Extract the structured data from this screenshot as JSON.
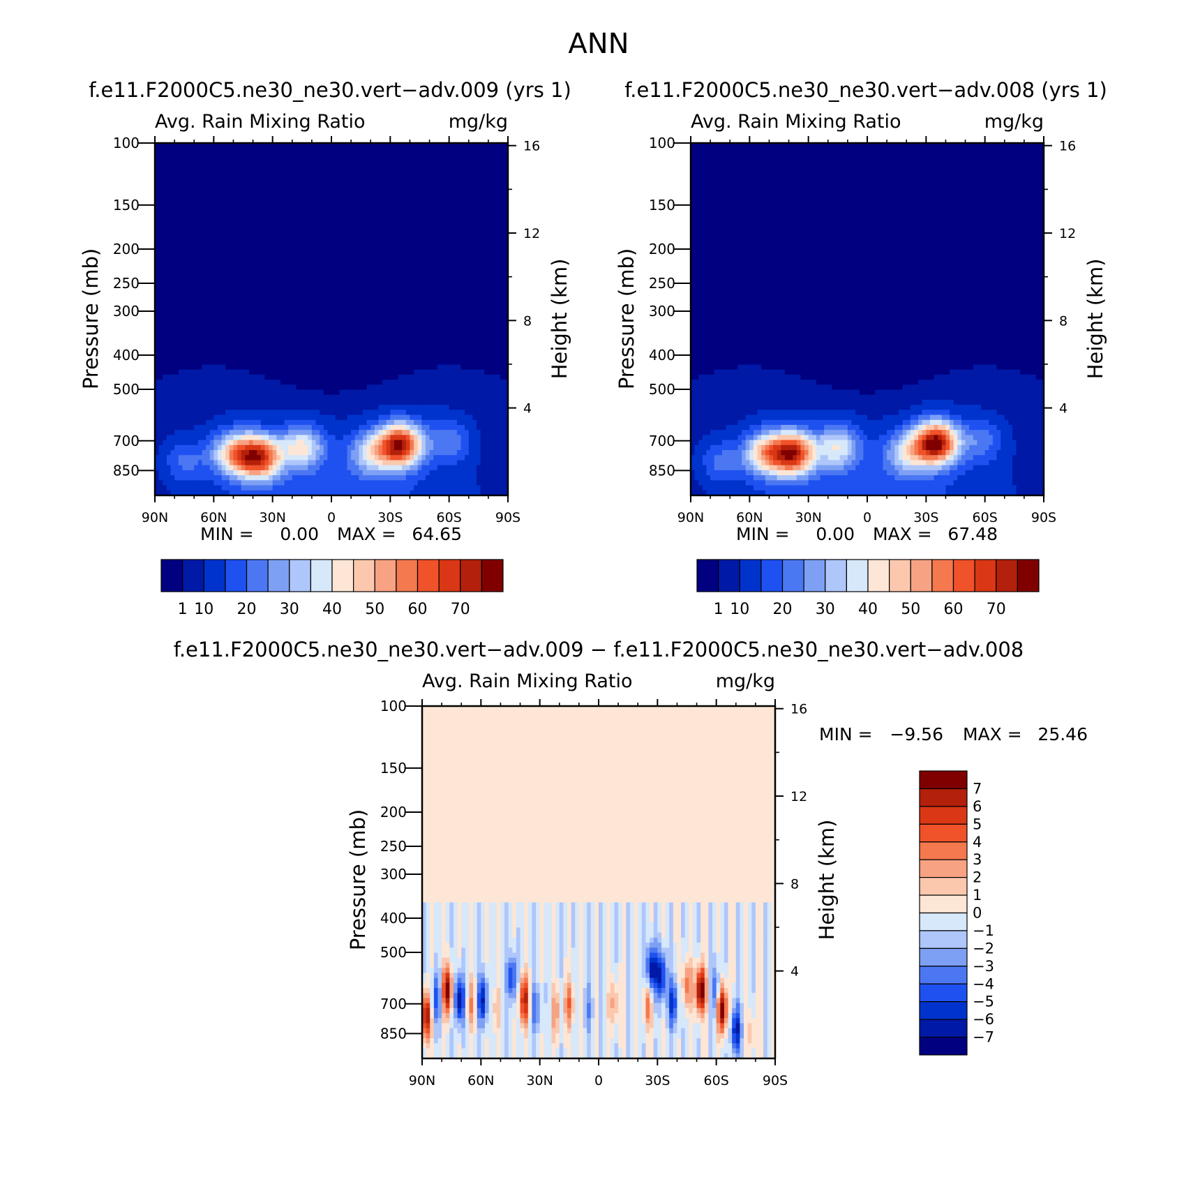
{
  "page": {
    "title": "ANN"
  },
  "colors": {
    "main_scale": [
      "#000080",
      "#0019a6",
      "#0033cc",
      "#1f51f0",
      "#4b77f2",
      "#7da0f5",
      "#aec6fa",
      "#d6e8fa",
      "#fde6d6",
      "#fbc8ae",
      "#f7a282",
      "#f4794f",
      "#f0522a",
      "#d93715",
      "#b3200b",
      "#800000"
    ],
    "diff_scale": [
      "#000080",
      "#0019a6",
      "#0033cc",
      "#1f51f0",
      "#4b77f2",
      "#7da0f5",
      "#aec6fa",
      "#d6e8fa",
      "#fde6d6",
      "#fbc8ae",
      "#f7a282",
      "#f4794f",
      "#f0522a",
      "#d93715",
      "#b3200b",
      "#800000"
    ]
  },
  "chart_data": [
    {
      "id": "panel-009",
      "type": "heatmap",
      "case_title": "f.e11.F2000C5.ne30_ne30.vert−adv.009 (yrs 1)",
      "variable": "Avg. Rain Mixing Ratio",
      "units": "mg/kg",
      "ylabel": "Pressure (mb)",
      "ylabel_right": "Height (km)",
      "x_ticks": [
        "90N",
        "60N",
        "30N",
        "0",
        "30S",
        "60S",
        "90S"
      ],
      "x_values": [
        90,
        60,
        30,
        0,
        -30,
        -60,
        -90
      ],
      "y_ticks": [
        "100",
        "150",
        "200",
        "250",
        "300",
        "400",
        "500",
        "700",
        "850"
      ],
      "y_values": [
        100,
        150,
        200,
        250,
        300,
        400,
        500,
        700,
        850
      ],
      "ylim": [
        100,
        1000
      ],
      "height_ticks": [
        "16",
        "12",
        "8",
        "4"
      ],
      "height_values": [
        16,
        12,
        8,
        4
      ],
      "stats": {
        "min_label": "MIN =",
        "min": "0.00",
        "max_label": "MAX =",
        "max": "64.65"
      },
      "colorbar_labels": [
        "1",
        "10",
        "20",
        "30",
        "40",
        "50",
        "60",
        "70"
      ],
      "blobs": [
        {
          "lat": 37,
          "p": 780,
          "v": 56
        },
        {
          "lat": -35,
          "p": 720,
          "v": 63
        },
        {
          "lat": 50,
          "p": 760,
          "v": 34
        },
        {
          "lat": 15,
          "p": 730,
          "v": 30
        },
        {
          "lat": -20,
          "p": 760,
          "v": 24
        },
        {
          "lat": -60,
          "p": 700,
          "v": 14
        },
        {
          "lat": 75,
          "p": 800,
          "v": 12
        }
      ]
    },
    {
      "id": "panel-008",
      "type": "heatmap",
      "case_title": "f.e11.F2000C5.ne30_ne30.vert−adv.008 (yrs 1)",
      "variable": "Avg. Rain Mixing Ratio",
      "units": "mg/kg",
      "ylabel": "Pressure (mb)",
      "ylabel_right": "Height (km)",
      "x_ticks": [
        "90N",
        "60N",
        "30N",
        "0",
        "30S",
        "60S",
        "90S"
      ],
      "x_values": [
        90,
        60,
        30,
        0,
        -30,
        -60,
        -90
      ],
      "y_ticks": [
        "100",
        "150",
        "200",
        "250",
        "300",
        "400",
        "500",
        "700",
        "850"
      ],
      "y_values": [
        100,
        150,
        200,
        250,
        300,
        400,
        500,
        700,
        850
      ],
      "ylim": [
        100,
        1000
      ],
      "height_ticks": [
        "16",
        "12",
        "8",
        "4"
      ],
      "height_values": [
        16,
        12,
        8,
        4
      ],
      "stats": {
        "min_label": "MIN =",
        "min": "0.00",
        "max_label": "MAX =",
        "max": "67.48"
      },
      "colorbar_labels": [
        "1",
        "10",
        "20",
        "30",
        "40",
        "50",
        "60",
        "70"
      ],
      "blobs": [
        {
          "lat": 38,
          "p": 760,
          "v": 58
        },
        {
          "lat": -35,
          "p": 710,
          "v": 66
        },
        {
          "lat": 52,
          "p": 760,
          "v": 35
        },
        {
          "lat": 15,
          "p": 730,
          "v": 28
        },
        {
          "lat": -20,
          "p": 760,
          "v": 24
        },
        {
          "lat": -58,
          "p": 700,
          "v": 13
        },
        {
          "lat": 75,
          "p": 800,
          "v": 12
        }
      ]
    },
    {
      "id": "panel-diff",
      "type": "heatmap",
      "case_title": "f.e11.F2000C5.ne30_ne30.vert−adv.009 − f.e11.F2000C5.ne30_ne30.vert−adv.008",
      "variable": "Avg. Rain Mixing Ratio",
      "units": "mg/kg",
      "ylabel": "Pressure (mb)",
      "ylabel_right": "Height (km)",
      "x_ticks": [
        "90N",
        "60N",
        "30N",
        "0",
        "30S",
        "60S",
        "90S"
      ],
      "x_values": [
        90,
        60,
        30,
        0,
        -30,
        -60,
        -90
      ],
      "y_ticks": [
        "100",
        "150",
        "200",
        "250",
        "300",
        "400",
        "500",
        "700",
        "850"
      ],
      "y_values": [
        100,
        150,
        200,
        250,
        300,
        400,
        500,
        700,
        850
      ],
      "ylim": [
        100,
        1000
      ],
      "height_ticks": [
        "16",
        "12",
        "8",
        "4"
      ],
      "height_values": [
        16,
        12,
        8,
        4
      ],
      "stats": {
        "min_label": "MIN =",
        "min": "−9.56",
        "max_label": "MAX =",
        "max": "25.46"
      },
      "colorbar_labels": [
        "7",
        "6",
        "5",
        "4",
        "3",
        "2",
        "1",
        "0",
        "−1",
        "−2",
        "−3",
        "−4",
        "−5",
        "−6",
        "−7"
      ],
      "cells": [
        {
          "lat": 88,
          "p": 760,
          "v": 8
        },
        {
          "lat": 83,
          "p": 680,
          "v": -4
        },
        {
          "lat": 77,
          "p": 640,
          "v": 8
        },
        {
          "lat": 71,
          "p": 680,
          "v": -7
        },
        {
          "lat": 65,
          "p": 700,
          "v": 3
        },
        {
          "lat": 59,
          "p": 680,
          "v": -6
        },
        {
          "lat": 53,
          "p": 720,
          "v": 2
        },
        {
          "lat": 44,
          "p": 590,
          "v": -5
        },
        {
          "lat": 38,
          "p": 680,
          "v": 7
        },
        {
          "lat": 32,
          "p": 720,
          "v": -3
        },
        {
          "lat": 22,
          "p": 740,
          "v": 3
        },
        {
          "lat": 15,
          "p": 700,
          "v": 4
        },
        {
          "lat": 5,
          "p": 720,
          "v": -2
        },
        {
          "lat": -8,
          "p": 700,
          "v": 3
        },
        {
          "lat": -27,
          "p": 560,
          "v": -7
        },
        {
          "lat": -25,
          "p": 700,
          "v": 4
        },
        {
          "lat": -32,
          "p": 580,
          "v": -6
        },
        {
          "lat": -38,
          "p": 700,
          "v": -5
        },
        {
          "lat": -45,
          "p": 620,
          "v": 4
        },
        {
          "lat": -52,
          "p": 640,
          "v": 9
        },
        {
          "lat": -60,
          "p": 640,
          "v": -4
        },
        {
          "lat": -63,
          "p": 720,
          "v": 9
        },
        {
          "lat": -70,
          "p": 830,
          "v": -6
        },
        {
          "lat": -78,
          "p": 850,
          "v": 2
        }
      ]
    }
  ]
}
